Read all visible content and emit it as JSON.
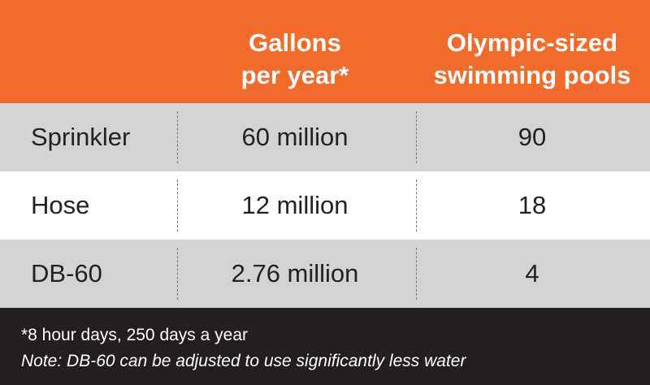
{
  "colors": {
    "header_bg": "#f26b2a",
    "row_gray": "#d2d3d5",
    "row_white": "#ffffff",
    "footer_bg": "#231f20"
  },
  "header": {
    "col1": "",
    "col2": "Gallons\nper year*",
    "col3": "Olympic-sized\nswimming pools"
  },
  "rows": [
    {
      "label": "Sprinkler",
      "gallons": "60 million",
      "pools": "90"
    },
    {
      "label": "Hose",
      "gallons": "12 million",
      "pools": "18"
    },
    {
      "label": "DB-60",
      "gallons": "2.76 million",
      "pools": "4"
    }
  ],
  "footer": {
    "line1": "*8 hour days, 250 days a year",
    "line2": "Note: DB-60 can be adjusted to use significantly less water"
  },
  "chart_data": {
    "type": "table",
    "columns": [
      "",
      "Gallons per year*",
      "Olympic-sized swimming pools"
    ],
    "rows": [
      [
        "Sprinkler",
        "60 million",
        "90"
      ],
      [
        "Hose",
        "12 million",
        "18"
      ],
      [
        "DB-60",
        "2.76 million",
        "4"
      ]
    ],
    "footnotes": [
      "*8 hour days, 250 days a year",
      "Note: DB-60 can be adjusted to use significantly less water"
    ]
  }
}
